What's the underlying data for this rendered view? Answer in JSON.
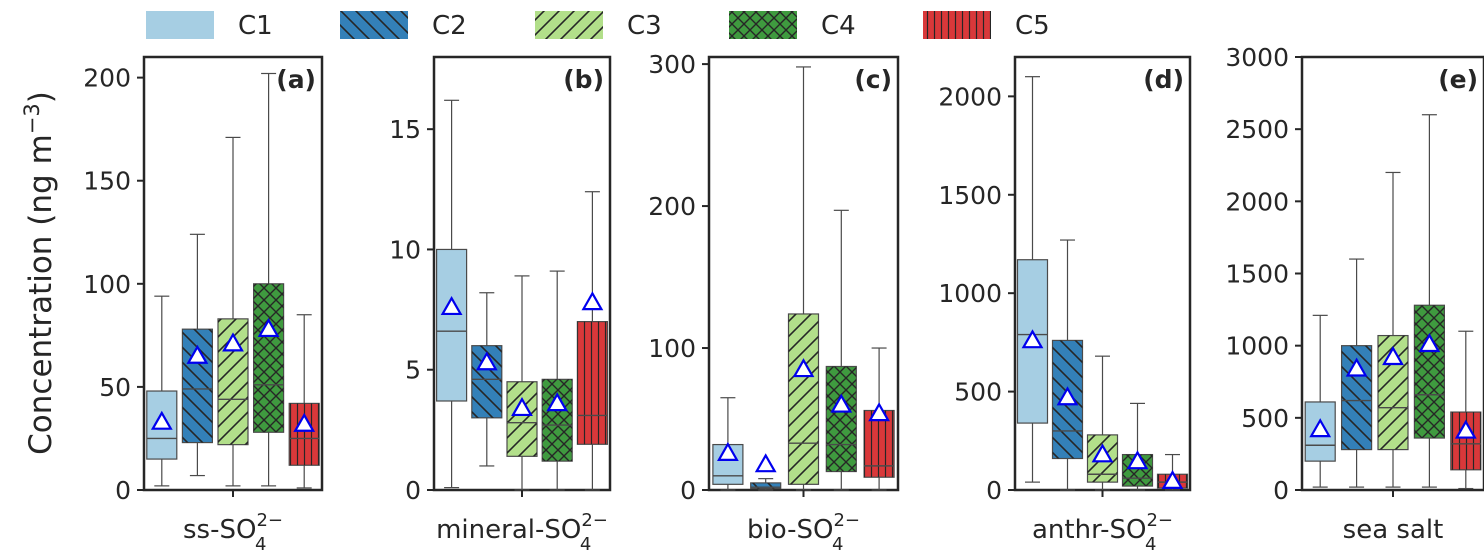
{
  "legend": {
    "entries": [
      {
        "name": "C1",
        "color": "#a6cee3",
        "hatch": "none"
      },
      {
        "name": "C2",
        "color": "#3380b8",
        "hatch": "backslash"
      },
      {
        "name": "C3",
        "color": "#b2df8a",
        "hatch": "slash"
      },
      {
        "name": "C4",
        "color": "#3f9a3f",
        "hatch": "cross"
      },
      {
        "name": "C5",
        "color": "#d9383a",
        "hatch": "vertical"
      }
    ],
    "placement": "top, horizontal"
  },
  "ylabel": {
    "main": "Concentration (ng m",
    "exp": "−3",
    "close": ")"
  },
  "chart_data": [
    {
      "type": "box",
      "panel": "(a)",
      "xlabel": {
        "base": "ss-SO",
        "sub": "4",
        "sup": "2−"
      },
      "ylim": [
        0,
        210
      ],
      "yticks": [
        0,
        50,
        100,
        150,
        200
      ],
      "boxes": [
        {
          "category": "C1",
          "whislo": 2,
          "q1": 15,
          "med": 25,
          "q3": 48,
          "whishi": 94,
          "mean": 33
        },
        {
          "category": "C2",
          "whislo": 7,
          "q1": 23,
          "med": 49,
          "q3": 78,
          "whishi": 124,
          "mean": 65
        },
        {
          "category": "C3",
          "whislo": 2,
          "q1": 22,
          "med": 44,
          "q3": 83,
          "whishi": 171,
          "mean": 71
        },
        {
          "category": "C4",
          "whislo": 2,
          "q1": 28,
          "med": 51,
          "q3": 100,
          "whishi": 202,
          "mean": 78
        },
        {
          "category": "C5",
          "whislo": 1,
          "q1": 12,
          "med": 25,
          "q3": 42,
          "whishi": 85,
          "mean": 32
        }
      ]
    },
    {
      "type": "box",
      "panel": "(b)",
      "xlabel": {
        "base": "mineral-SO",
        "sub": "4",
        "sup": "2−"
      },
      "ylim": [
        0,
        18
      ],
      "yticks": [
        0,
        5,
        10,
        15
      ],
      "boxes": [
        {
          "category": "C1",
          "whislo": 0.1,
          "q1": 3.7,
          "med": 6.6,
          "q3": 10.0,
          "whishi": 16.2,
          "mean": 7.6
        },
        {
          "category": "C2",
          "whislo": 1.0,
          "q1": 3.0,
          "med": 4.6,
          "q3": 6.0,
          "whishi": 8.2,
          "mean": 5.3
        },
        {
          "category": "C3",
          "whislo": 0.0,
          "q1": 1.4,
          "med": 2.8,
          "q3": 4.5,
          "whishi": 8.9,
          "mean": 3.4
        },
        {
          "category": "C4",
          "whislo": 0.0,
          "q1": 1.2,
          "med": 2.7,
          "q3": 4.6,
          "whishi": 9.1,
          "mean": 3.6
        },
        {
          "category": "C5",
          "whislo": 0.0,
          "q1": 1.9,
          "med": 3.1,
          "q3": 7.0,
          "whishi": 12.4,
          "mean": 7.8
        }
      ]
    },
    {
      "type": "box",
      "panel": "(c)",
      "xlabel": {
        "base": "bio-SO",
        "sub": "4",
        "sup": "2−"
      },
      "ylim": [
        0,
        305
      ],
      "yticks": [
        0,
        100,
        200,
        300
      ],
      "boxes": [
        {
          "category": "C1",
          "whislo": 0,
          "q1": 4,
          "med": 10,
          "q3": 32,
          "whishi": 65,
          "mean": 26
        },
        {
          "category": "C2",
          "whislo": 0,
          "q1": 1,
          "med": 2,
          "q3": 5,
          "whishi": 8,
          "mean": 18
        },
        {
          "category": "C3",
          "whislo": 0,
          "q1": 4,
          "med": 33,
          "q3": 124,
          "whishi": 298,
          "mean": 85
        },
        {
          "category": "C4",
          "whislo": 0,
          "q1": 13,
          "med": 32,
          "q3": 87,
          "whishi": 197,
          "mean": 60
        },
        {
          "category": "C5",
          "whislo": 0,
          "q1": 9,
          "med": 17,
          "q3": 56,
          "whishi": 100,
          "mean": 54
        }
      ]
    },
    {
      "type": "box",
      "panel": "(d)",
      "xlabel": {
        "base": "anthr-SO",
        "sub": "4",
        "sup": "2−"
      },
      "ylim": [
        0,
        2200
      ],
      "yticks": [
        0,
        500,
        1000,
        1500,
        2000
      ],
      "boxes": [
        {
          "category": "C1",
          "whislo": 40,
          "q1": 340,
          "med": 790,
          "q3": 1170,
          "whishi": 2100,
          "mean": 760
        },
        {
          "category": "C2",
          "whislo": 0,
          "q1": 160,
          "med": 300,
          "q3": 760,
          "whishi": 1270,
          "mean": 470
        },
        {
          "category": "C3",
          "whislo": 0,
          "q1": 40,
          "med": 80,
          "q3": 280,
          "whishi": 680,
          "mean": 180
        },
        {
          "category": "C4",
          "whislo": 0,
          "q1": 20,
          "med": 60,
          "q3": 180,
          "whishi": 440,
          "mean": 145
        },
        {
          "category": "C5",
          "whislo": 0,
          "q1": 10,
          "med": 40,
          "q3": 80,
          "whishi": 180,
          "mean": 45
        }
      ]
    },
    {
      "type": "box",
      "panel": "(e)",
      "xlabel": {
        "base": "sea salt",
        "sub": "",
        "sup": ""
      },
      "ylim": [
        0,
        3000
      ],
      "yticks": [
        0,
        500,
        1000,
        1500,
        2000,
        2500,
        3000
      ],
      "boxes": [
        {
          "category": "C1",
          "whislo": 20,
          "q1": 200,
          "med": 310,
          "q3": 610,
          "whishi": 1210,
          "mean": 420
        },
        {
          "category": "C2",
          "whislo": 20,
          "q1": 280,
          "med": 620,
          "q3": 1000,
          "whishi": 1600,
          "mean": 840
        },
        {
          "category": "C3",
          "whislo": 20,
          "q1": 280,
          "med": 570,
          "q3": 1070,
          "whishi": 2200,
          "mean": 920
        },
        {
          "category": "C4",
          "whislo": 20,
          "q1": 360,
          "med": 660,
          "q3": 1280,
          "whishi": 2600,
          "mean": 1010
        },
        {
          "category": "C5",
          "whislo": 10,
          "q1": 140,
          "med": 320,
          "q3": 540,
          "whishi": 1100,
          "mean": 410
        }
      ]
    }
  ]
}
